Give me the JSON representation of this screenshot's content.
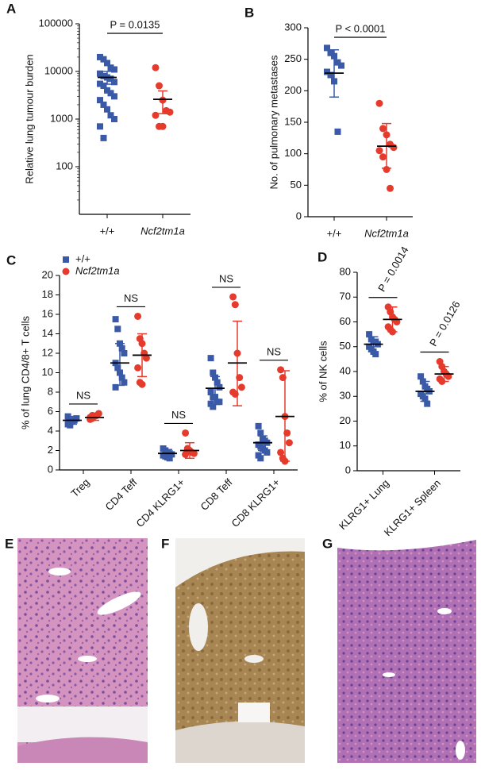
{
  "chart_data": [
    {
      "panel": "A",
      "type": "dot",
      "ylabel": "Relative lung tumour burden",
      "log_scale": true,
      "ylim": [
        10,
        100000
      ],
      "yticks": [
        100,
        1000,
        10000,
        100000
      ],
      "categories": [
        "+/+",
        "Ncf2tm1a"
      ],
      "comparison": "P = 0.0135",
      "groups": [
        {
          "color": "#3a5aa8",
          "marker": "square",
          "values": [
            20000,
            18000,
            15000,
            12000,
            11000,
            9000,
            8000,
            7500,
            7000,
            6000,
            5500,
            5000,
            4000,
            3500,
            3000,
            2500,
            2000,
            1600,
            1200,
            1000,
            700,
            400
          ],
          "mean": 7500,
          "error": [
            5400,
            10000
          ]
        },
        {
          "color": "#e53a2c",
          "marker": "circle",
          "values": [
            12000,
            5000,
            2500,
            1500,
            1400,
            1200,
            700,
            700
          ],
          "mean": 2600,
          "error": [
            1300,
            3900
          ]
        }
      ]
    },
    {
      "panel": "B",
      "type": "dot",
      "ylabel": "No. of pulmonary metastases",
      "ylim": [
        0,
        300
      ],
      "yticks": [
        0,
        50,
        100,
        150,
        200,
        250,
        300
      ],
      "categories": [
        "+/+",
        "Ncf2tm1a"
      ],
      "comparison": "P < 0.0001",
      "groups": [
        {
          "color": "#3a5aa8",
          "marker": "square",
          "values": [
            268,
            260,
            255,
            245,
            240,
            230,
            225,
            215,
            135
          ],
          "mean": 228,
          "error": [
            190,
            265
          ]
        },
        {
          "color": "#e53a2c",
          "marker": "circle",
          "values": [
            180,
            140,
            130,
            115,
            110,
            105,
            95,
            75,
            45
          ],
          "mean": 112,
          "error": [
            77,
            148
          ]
        }
      ]
    },
    {
      "panel": "C",
      "type": "grouped_dot",
      "ylabel": "% of lung CD4/8+ T cells",
      "ylim": [
        0,
        20
      ],
      "yticks": [
        0,
        2,
        4,
        6,
        8,
        10,
        12,
        14,
        16,
        18,
        20
      ],
      "categories": [
        "Treg",
        "CD4 Teff",
        "CD4 KLRG1+",
        "CD8 Teff",
        "CD8 KLRG1+"
      ],
      "comparisons": [
        "NS",
        "NS",
        "NS",
        "NS",
        "NS"
      ],
      "series": [
        {
          "name": "+/+",
          "color": "#3a5aa8",
          "marker": "square",
          "values": [
            [
              4.7,
              4.9,
              5.0,
              5.1,
              5.3,
              5.5,
              4.6
            ],
            [
              15.5,
              14.5,
              13,
              12.5,
              12,
              11,
              10.5,
              10,
              9.5,
              9,
              8.5
            ],
            [
              2.2,
              2.0,
              1.8,
              1.7,
              1.6,
              1.5,
              1.4,
              1.3,
              1.2
            ],
            [
              11.5,
              10,
              9.5,
              9,
              8.5,
              8,
              7.5,
              7.5,
              7,
              7,
              6.8,
              6.5
            ],
            [
              4.5,
              3.8,
              3.2,
              3,
              2.8,
              2.6,
              2.4,
              2.2,
              2,
              1.8,
              1.5,
              1.2
            ]
          ],
          "means": [
            5.1,
            11,
            1.7,
            8.4,
            2.8
          ],
          "errors": [
            [
              4.7,
              5.5
            ],
            [
              8.7,
              13
            ],
            [
              1.4,
              2.1
            ],
            [
              7.2,
              9.6
            ],
            [
              2.0,
              3.5
            ]
          ]
        },
        {
          "name": "Ncf2tm1a",
          "color": "#e53a2c",
          "marker": "circle",
          "values": [
            [
              5.2,
              5.3,
              5.5,
              5.6,
              5.8,
              5.4,
              5.6
            ],
            [
              15.8,
              13.5,
              13,
              12,
              11.5,
              10.5,
              9,
              8.8
            ],
            [
              3.8,
              2.2,
              2.0,
              1.8,
              1.7,
              1.6
            ],
            [
              17.8,
              17,
              12,
              9.5,
              8.5,
              8,
              7.8
            ],
            [
              10.3,
              9.5,
              5.5,
              3.8,
              2.8,
              1.8,
              1.2,
              0.9
            ]
          ],
          "means": [
            5.4,
            11.8,
            2.0,
            11,
            5.5
          ],
          "errors": [
            [
              5.1,
              5.8
            ],
            [
              9.6,
              14
            ],
            [
              1.2,
              2.8
            ],
            [
              6.6,
              15.3
            ],
            [
              0.9,
              10.2
            ]
          ]
        }
      ]
    },
    {
      "panel": "D",
      "type": "grouped_dot",
      "ylabel": "% of NK cells",
      "ylim": [
        0,
        80
      ],
      "yticks": [
        0,
        10,
        20,
        30,
        40,
        50,
        60,
        70,
        80
      ],
      "categories": [
        "KLRG1+ Lung",
        "KLRG1+ Spleen"
      ],
      "comparisons": [
        "P = 0.0014",
        "P = 0.0126"
      ],
      "series": [
        {
          "color": "#3a5aa8",
          "marker": "square",
          "values": [
            [
              55,
              53,
              52,
              52,
              51,
              50,
              49,
              48,
              47
            ],
            [
              38,
              36,
              34,
              33,
              32,
              31,
              30,
              29,
              27
            ]
          ],
          "means": [
            51,
            32
          ],
          "errors": [
            [
              48,
              54
            ],
            [
              28,
              36
            ]
          ]
        },
        {
          "color": "#e53a2c",
          "marker": "circle",
          "values": [
            [
              66,
              64,
              62,
              61,
              60,
              58,
              57,
              56
            ],
            [
              44,
              42,
              40,
              39,
              38,
              37,
              36
            ]
          ],
          "means": [
            61,
            39
          ],
          "errors": [
            [
              56,
              66
            ],
            [
              36,
              42
            ]
          ]
        }
      ]
    }
  ],
  "image_panels": [
    {
      "label": "E"
    },
    {
      "label": "F"
    },
    {
      "label": "G"
    }
  ]
}
